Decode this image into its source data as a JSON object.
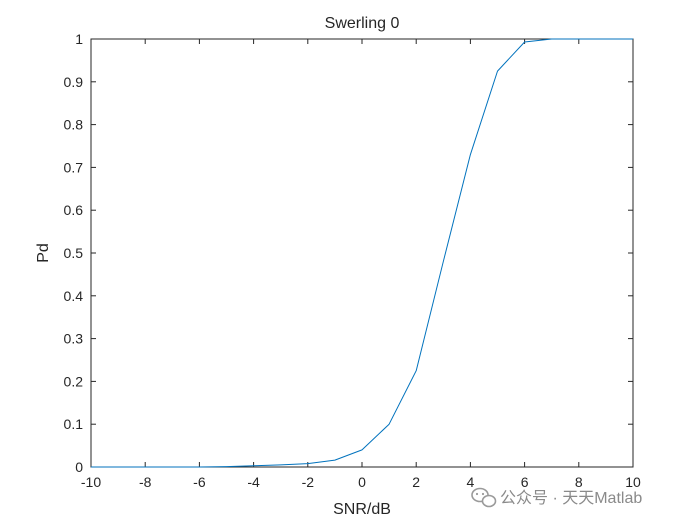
{
  "chart_data": {
    "type": "line",
    "title": "Swerling 0",
    "xlabel": "SNR/dB",
    "ylabel": "Pd",
    "xlim": [
      -10,
      10
    ],
    "ylim": [
      0,
      1
    ],
    "xticks": [
      -10,
      -8,
      -6,
      -4,
      -2,
      0,
      2,
      4,
      6,
      8,
      10
    ],
    "yticks": [
      0,
      0.1,
      0.2,
      0.3,
      0.4,
      0.5,
      0.6,
      0.7,
      0.8,
      0.9,
      1
    ],
    "xtick_labels": [
      "-10",
      "-8",
      "-6",
      "-4",
      "-2",
      "0",
      "2",
      "4",
      "6",
      "8",
      "10"
    ],
    "ytick_labels": [
      "0",
      "0.1",
      "0.2",
      "0.3",
      "0.4",
      "0.5",
      "0.6",
      "0.7",
      "0.8",
      "0.9",
      "1"
    ],
    "grid": false,
    "series": [
      {
        "color": "#0072BD",
        "x": [
          -10,
          -9,
          -8,
          -7,
          -6,
          -5,
          -4,
          -3,
          -2,
          -1,
          0,
          1,
          2,
          3,
          4,
          5,
          6,
          7,
          8,
          9,
          10
        ],
        "y": [
          0.0,
          0.0,
          0.0,
          0.0,
          0.0,
          0.001,
          0.003,
          0.005,
          0.008,
          0.016,
          0.04,
          0.1,
          0.225,
          0.48,
          0.73,
          0.925,
          0.993,
          1.0,
          1.0,
          1.0,
          1.0
        ]
      }
    ]
  },
  "watermark": {
    "text": "公众号 · 天天Matlab",
    "icon": "wechat-icon"
  }
}
